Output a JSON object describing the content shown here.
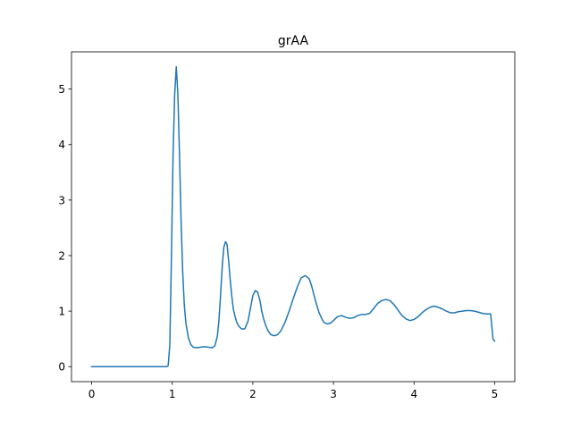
{
  "chart_data": {
    "type": "line",
    "title": "grAA",
    "xlabel": "",
    "ylabel": "",
    "xlim": [
      -0.25,
      5.25
    ],
    "ylim": [
      -0.27,
      5.67
    ],
    "xticks": [
      0,
      1,
      2,
      3,
      4,
      5
    ],
    "xtick_labels": [
      "0",
      "1",
      "2",
      "3",
      "4",
      "5"
    ],
    "yticks": [
      0,
      1,
      2,
      3,
      4,
      5
    ],
    "ytick_labels": [
      "0",
      "1",
      "2",
      "3",
      "4",
      "5"
    ],
    "grid": false,
    "line_color": "#1f77b4",
    "series": [
      {
        "x": [
          0,
          0.5,
          0.93,
          0.95,
          0.97,
          0.99,
          1.01,
          1.03,
          1.05,
          1.07,
          1.09,
          1.11,
          1.13,
          1.15,
          1.17,
          1.2,
          1.23,
          1.26,
          1.3,
          1.35,
          1.4,
          1.45,
          1.5,
          1.53,
          1.56,
          1.58,
          1.6,
          1.62,
          1.64,
          1.66,
          1.68,
          1.7,
          1.72,
          1.74,
          1.76,
          1.78,
          1.8,
          1.83,
          1.86,
          1.9,
          1.94,
          1.97,
          2.0,
          2.03,
          2.06,
          2.09,
          2.11,
          2.13,
          2.16,
          2.19,
          2.22,
          2.25,
          2.28,
          2.31,
          2.35,
          2.4,
          2.45,
          2.5,
          2.55,
          2.6,
          2.65,
          2.7,
          2.73,
          2.76,
          2.79,
          2.82,
          2.85,
          2.88,
          2.92,
          2.96,
          3.0,
          3.05,
          3.1,
          3.15,
          3.2,
          3.25,
          3.3,
          3.35,
          3.4,
          3.45,
          3.5,
          3.55,
          3.6,
          3.65,
          3.7,
          3.75,
          3.8,
          3.85,
          3.9,
          3.95,
          4.0,
          4.05,
          4.1,
          4.15,
          4.2,
          4.25,
          4.3,
          4.35,
          4.4,
          4.45,
          4.5,
          4.55,
          4.6,
          4.65,
          4.7,
          4.75,
          4.8,
          4.85,
          4.9,
          4.95,
          4.98,
          5.0
        ],
        "y": [
          0,
          0,
          0,
          0.02,
          0.4,
          2.0,
          3.8,
          4.9,
          5.4,
          4.9,
          3.8,
          2.6,
          1.7,
          1.1,
          0.78,
          0.52,
          0.4,
          0.35,
          0.34,
          0.35,
          0.36,
          0.35,
          0.34,
          0.38,
          0.55,
          0.85,
          1.3,
          1.8,
          2.15,
          2.25,
          2.2,
          1.9,
          1.55,
          1.25,
          1.02,
          0.9,
          0.8,
          0.72,
          0.68,
          0.68,
          0.82,
          1.05,
          1.28,
          1.37,
          1.34,
          1.18,
          1.0,
          0.88,
          0.74,
          0.64,
          0.58,
          0.56,
          0.56,
          0.58,
          0.65,
          0.8,
          1.0,
          1.22,
          1.43,
          1.6,
          1.64,
          1.58,
          1.45,
          1.28,
          1.12,
          0.98,
          0.88,
          0.8,
          0.77,
          0.78,
          0.83,
          0.9,
          0.92,
          0.89,
          0.87,
          0.88,
          0.92,
          0.94,
          0.94,
          0.96,
          1.05,
          1.14,
          1.19,
          1.21,
          1.19,
          1.12,
          1.02,
          0.92,
          0.86,
          0.83,
          0.85,
          0.9,
          0.97,
          1.03,
          1.07,
          1.09,
          1.07,
          1.04,
          1.0,
          0.97,
          0.97,
          0.99,
          1.0,
          1.01,
          1.01,
          1.0,
          0.98,
          0.96,
          0.95,
          0.95,
          0.5,
          0.46
        ]
      }
    ]
  }
}
